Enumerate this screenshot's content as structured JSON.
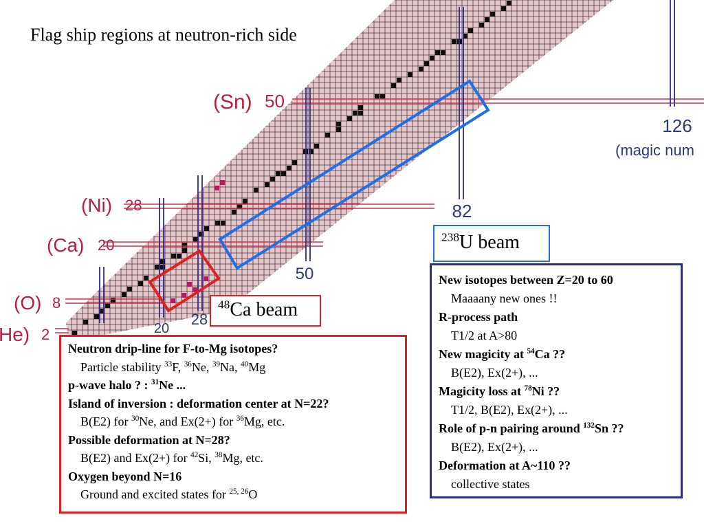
{
  "title": "Flag ship regions at neutron-rich side",
  "chart": {
    "proton_labels": [
      {
        "element": "(Sn)",
        "number": 50
      },
      {
        "element": "(Ni)",
        "number": 28
      },
      {
        "element": "(Ca)",
        "number": 20
      },
      {
        "element": "(O)",
        "number": 8
      },
      {
        "element": "He)",
        "number": 2
      }
    ],
    "neutron_labels": [
      20,
      28,
      50,
      82,
      126
    ],
    "note": "(magic num"
  },
  "ca_beam": {
    "label": [
      {
        "sup": "48"
      },
      "Ca beam"
    ]
  },
  "u_beam": {
    "label": [
      {
        "sup": "238"
      },
      "U beam"
    ]
  },
  "left_panel": {
    "items": [
      {
        "heading": [
          "Neutron drip-line for F-to-Mg isotopes?"
        ],
        "detail": [
          "Particle stability ",
          {
            "sup": "33"
          },
          "F, ",
          {
            "sup": "36"
          },
          "Ne, ",
          {
            "sup": "39"
          },
          "Na, ",
          {
            "sup": "40"
          },
          "Mg"
        ]
      },
      {
        "heading": [
          "p-wave halo ? : ",
          {
            "sup": "31"
          },
          "Ne ..."
        ]
      },
      {
        "heading": [
          "Island of inversion : deformation center at N=22?"
        ],
        "detail": [
          "B(E2) for ",
          {
            "sup": "30"
          },
          "Ne, and Ex(2+) for ",
          {
            "sup": "36"
          },
          "Mg, etc."
        ]
      },
      {
        "heading": [
          "Possible deformation at N=28?"
        ],
        "detail": [
          "B(E2) and Ex(2+) for ",
          {
            "sup": "42"
          },
          "Si, ",
          {
            "sup": "38"
          },
          "Mg, etc."
        ]
      },
      {
        "heading": [
          "Oxygen beyond N=16"
        ],
        "detail": [
          "Ground and excited states for ",
          {
            "sup": "25, 26"
          },
          "O"
        ]
      }
    ]
  },
  "right_panel": {
    "items": [
      {
        "heading": [
          "New isotopes between Z=20 to 60"
        ],
        "detail": [
          "Maaaany new ones !!"
        ]
      },
      {
        "heading": [
          "R-process path"
        ],
        "detail": [
          "T1/2 at A>80"
        ]
      },
      {
        "heading": [
          "New magicity at ",
          {
            "sup": "54"
          },
          "Ca ??"
        ],
        "detail": [
          "B(E2), Ex(2+), ..."
        ]
      },
      {
        "heading": [
          "Magicity loss at ",
          {
            "sup": "78"
          },
          "Ni ??"
        ],
        "detail": [
          "T1/2, B(E2), Ex(2+), ..."
        ]
      },
      {
        "heading": [
          "Role of p-n pairing around ",
          {
            "sup": "132"
          },
          "Sn ??"
        ],
        "detail": [
          "B(E2), Ex(2+), ..."
        ]
      },
      {
        "heading": [
          "Deformation at A~110 ??"
        ],
        "detail": [
          "collective states"
        ]
      }
    ]
  }
}
